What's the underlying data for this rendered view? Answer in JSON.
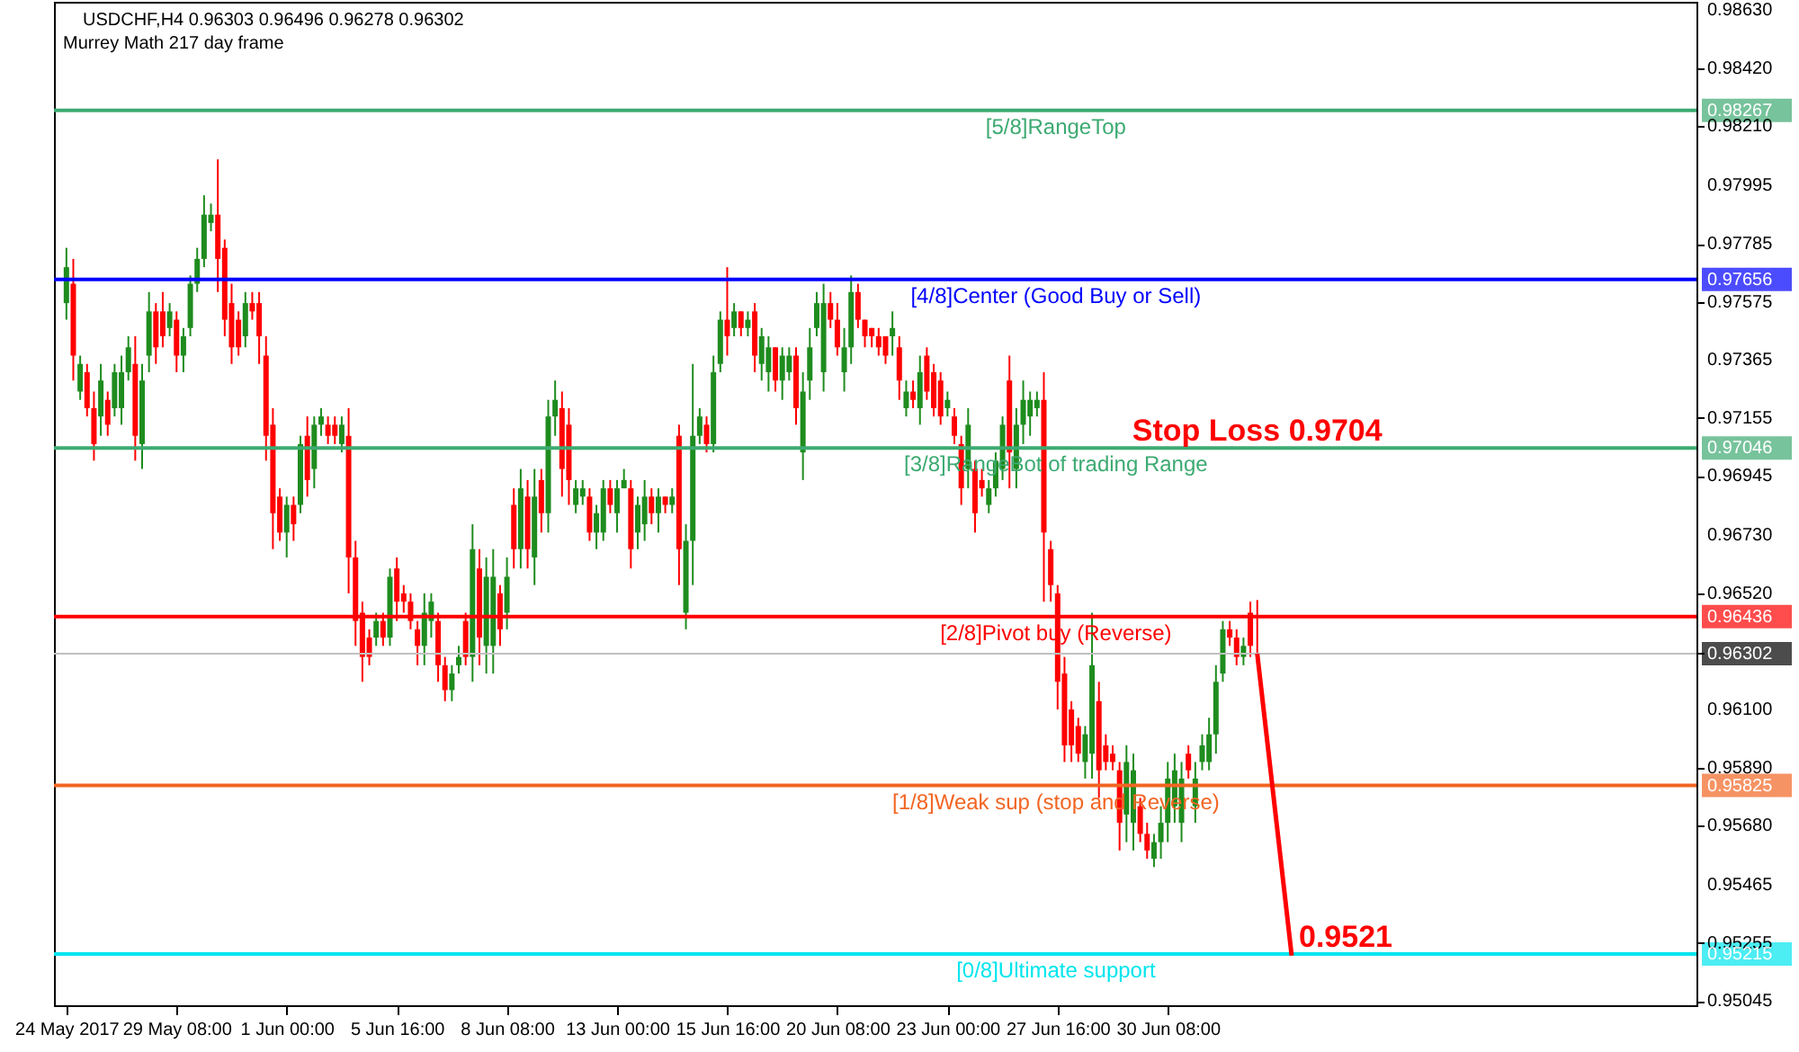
{
  "chart_data": {
    "type": "candlestick",
    "title": "USDCHF,H4  0.96303 0.96496 0.96278 0.96302",
    "subtitle": "Murrey Math 217 day frame",
    "colors": [
      "#1e8c1e",
      "#ff0000",
      "#1e8c1e",
      "#ff0000",
      "#ff0000",
      "#1e8c1e",
      "#ff0000",
      "#1e8c1e",
      "#1e8c1e",
      "#1e8c1e",
      "#ff0000",
      "#1e8c1e",
      "#1e8c1e",
      "#ff0000",
      "#ff0000",
      "#1e8c1e",
      "#ff0000",
      "#1e8c1e",
      "#1e8c1e",
      "#1e8c1e",
      "#1e8c1e",
      "#1e8c1e",
      "#ff0000",
      "#ff0000",
      "#ff0000",
      "#ff0000",
      "#1e8c1e",
      "#ff0000",
      "#ff0000",
      "#ff0000",
      "#ff0000",
      "#ff0000",
      "#1e8c1e",
      "#ff0000",
      "#1e8c1e",
      "#ff0000",
      "#1e8c1e",
      "#1e8c1e",
      "#ff0000",
      "#ff0000",
      "#1e8c1e",
      "#ff0000",
      "#ff0000",
      "#ff0000",
      "#ff0000",
      "#1e8c1e",
      "#ff0000",
      "#1e8c1e",
      "#ff0000",
      "#ff0000",
      "#ff0000",
      "#ff0000",
      "#1e8c1e",
      "#1e8c1e",
      "#ff0000",
      "#ff0000",
      "#1e8c1e",
      "#1e8c1e",
      "#ff0000",
      "#1e8c1e",
      "#ff0000",
      "#1e8c1e",
      "#1e8c1e",
      "#ff0000",
      "#1e8c1e",
      "#ff0000",
      "#1e8c1e",
      "#ff0000",
      "#1e8c1e",
      "#ff0000",
      "#1e8c1e",
      "#1e8c1e",
      "#ff0000",
      "#ff0000",
      "#1e8c1e",
      "#1e8c1e",
      "#ff0000",
      "#1e8c1e",
      "#1e8c1e",
      "#ff0000",
      "#1e8c1e",
      "#1e8c1e",
      "#ff0000",
      "#1e8c1e",
      "#1e8c1e",
      "#ff0000",
      "#1e8c1e",
      "#ff0000",
      "#1e8c1e",
      "#ff0000",
      "#1e8c1e",
      "#1e8c1e",
      "#1e8c1e",
      "#ff0000",
      "#1e8c1e",
      "#1e8c1e",
      "#ff0000",
      "#1e8c1e",
      "#ff0000",
      "#1e8c1e",
      "#ff0000",
      "#1e8c1e",
      "#1e8c1e",
      "#ff0000",
      "#1e8c1e",
      "#1e8c1e",
      "#ff0000",
      "#1e8c1e",
      "#1e8c1e",
      "#1e8c1e",
      "#1e8c1e",
      "#ff0000",
      "#ff0000",
      "#1e8c1e",
      "#1e8c1e",
      "#ff0000",
      "#ff0000",
      "#ff0000",
      "#ff0000",
      "#ff0000",
      "#1e8c1e",
      "#ff0000",
      "#1e8c1e",
      "#ff0000",
      "#1e8c1e",
      "#ff0000",
      "#ff0000",
      "#ff0000",
      "#1e8c1e",
      "#ff0000",
      "#ff0000",
      "#1e8c1e",
      "#ff0000",
      "#ff0000",
      "#1e8c1e",
      "#1e8c1e",
      "#1e8c1e",
      "#ff0000",
      "#1e8c1e",
      "#1e8c1e",
      "#1e8c1e",
      "#1e8c1e",
      "#ff0000",
      "#ff0000",
      "#ff0000",
      "#ff0000",
      "#ff0000",
      "#ff0000",
      "#1e8c1e",
      "#1e8c1e",
      "#ff0000",
      "#ff0000",
      "#ff0000",
      "#ff0000",
      "#1e8c1e",
      "#1e8c1e",
      "#ff0000",
      "#ff0000",
      "#1e8c1e",
      "#1e8c1e",
      "#1e8c1e",
      "#1e8c1e",
      "#1e8c1e",
      "#ff0000",
      "#1e8c1e",
      "#1e8c1e",
      "#1e8c1e",
      "#1e8c1e",
      "#1e8c1e",
      "#ff0000",
      "#ff0000",
      "#1e8c1e",
      "#ff0000",
      "#ff0000",
      null,
      null,
      null,
      null,
      null,
      null,
      null,
      null,
      null,
      null,
      null,
      null,
      null,
      null,
      null,
      null,
      null,
      null,
      null,
      null,
      null,
      null,
      null,
      null,
      null,
      null,
      null,
      null,
      null,
      null,
      null,
      null,
      null,
      null,
      null,
      null,
      null,
      null,
      null,
      null,
      null,
      null,
      null,
      null,
      null,
      null,
      null,
      null,
      null,
      null,
      null,
      null,
      null,
      null,
      null,
      null,
      null,
      null,
      null,
      null,
      null,
      null
    ],
    "categories": [
      "24 May 2017",
      null,
      null,
      null,
      null,
      null,
      null,
      null,
      null,
      null,
      null,
      null,
      null,
      null,
      null,
      null,
      "29 May 08:00",
      null,
      null,
      null,
      null,
      null,
      null,
      null,
      null,
      null,
      null,
      null,
      null,
      null,
      null,
      null,
      "1 Jun 00:00",
      null,
      null,
      null,
      null,
      null,
      null,
      null,
      null,
      null,
      null,
      null,
      null,
      null,
      null,
      null,
      "5 Jun 16:00",
      null,
      null,
      null,
      null,
      null,
      null,
      null,
      null,
      null,
      null,
      null,
      null,
      null,
      null,
      null,
      "8 Jun 08:00",
      null,
      null,
      null,
      null,
      null,
      null,
      null,
      null,
      null,
      null,
      null,
      null,
      null,
      null,
      null,
      "13 Jun 00:00",
      null,
      null,
      null,
      null,
      null,
      null,
      null,
      null,
      null,
      null,
      null,
      null,
      null,
      null,
      null,
      "15 Jun 16:00",
      null,
      null,
      null,
      null,
      null,
      null,
      null,
      null,
      null,
      null,
      null,
      null,
      null,
      null,
      null,
      "20 Jun 08:00",
      null,
      null,
      null,
      null,
      null,
      null,
      null,
      null,
      null,
      null,
      null,
      null,
      null,
      null,
      null,
      "23 Jun 00:00",
      null,
      null,
      null,
      null,
      null,
      null,
      null,
      null,
      null,
      null,
      null,
      null,
      null,
      null,
      null,
      "27 Jun 16:00",
      null,
      null,
      null,
      null,
      null,
      null,
      null,
      null,
      null,
      null,
      null,
      null,
      null,
      null,
      null,
      "30 Jun 08:00",
      null,
      null,
      null,
      null,
      null,
      null,
      null,
      null,
      null,
      null,
      null,
      null,
      null,
      null,
      null,
      null,
      null,
      null,
      null,
      null,
      null,
      null,
      null,
      null,
      null,
      null,
      null,
      null,
      null,
      null,
      null,
      null,
      null,
      null,
      null,
      null,
      null,
      null,
      null,
      null,
      null,
      null,
      null,
      null,
      null,
      null,
      null,
      null,
      null,
      null,
      null,
      null,
      null,
      null,
      null,
      null,
      null,
      null,
      null,
      null,
      null,
      null,
      null,
      null,
      null,
      null,
      null,
      null,
      null,
      null,
      null,
      null,
      null,
      null,
      null
    ],
    "ohlc": [
      [
        0.9757,
        0.9777,
        0.9751,
        0.977
      ],
      [
        0.9764,
        0.9773,
        0.9729,
        0.9738
      ],
      [
        0.9725,
        0.9738,
        0.9722,
        0.9735
      ],
      [
        0.9732,
        0.9735,
        0.9716,
        0.9719
      ],
      [
        0.9719,
        0.9725,
        0.97,
        0.9706
      ],
      [
        0.9716,
        0.9735,
        0.9709,
        0.9729
      ],
      [
        0.9722,
        0.9725,
        0.9709,
        0.9713
      ],
      [
        0.9719,
        0.9735,
        0.9716,
        0.9732
      ],
      [
        0.9719,
        0.9738,
        0.9713,
        0.9732
      ],
      [
        0.9732,
        0.9745,
        0.9729,
        0.9741
      ],
      [
        0.9735,
        0.9745,
        0.97,
        0.9709
      ],
      [
        0.9706,
        0.9735,
        0.9697,
        0.9729
      ],
      [
        0.9738,
        0.9761,
        0.9732,
        0.9754
      ],
      [
        0.9754,
        0.9757,
        0.9735,
        0.9741
      ],
      [
        0.9754,
        0.9761,
        0.9741,
        0.9745
      ],
      [
        0.9748,
        0.9757,
        0.9745,
        0.9754
      ],
      [
        0.9751,
        0.9754,
        0.9732,
        0.9738
      ],
      [
        0.9738,
        0.9748,
        0.9732,
        0.9745
      ],
      [
        0.9748,
        0.9767,
        0.9745,
        0.9764
      ],
      [
        0.9764,
        0.9777,
        0.9761,
        0.9773
      ],
      [
        0.9773,
        0.9796,
        0.977,
        0.9789
      ],
      [
        0.9786,
        0.9793,
        0.9783,
        0.9789
      ],
      [
        0.9789,
        0.9809,
        0.9761,
        0.9773
      ],
      [
        0.9777,
        0.978,
        0.9745,
        0.9751
      ],
      [
        0.9757,
        0.9764,
        0.9735,
        0.9741
      ],
      [
        0.9751,
        0.9754,
        0.9738,
        0.9741
      ],
      [
        0.9745,
        0.9761,
        0.9741,
        0.9757
      ],
      [
        0.9757,
        0.9761,
        0.9751,
        0.9754
      ],
      [
        0.9757,
        0.9761,
        0.9735,
        0.9745
      ],
      [
        0.9738,
        0.9745,
        0.97,
        0.9709
      ],
      [
        0.9713,
        0.9719,
        0.9668,
        0.9681
      ],
      [
        0.9687,
        0.969,
        0.9671,
        0.9674
      ],
      [
        0.9674,
        0.9687,
        0.9665,
        0.9684
      ],
      [
        0.9684,
        0.9687,
        0.9671,
        0.9677
      ],
      [
        0.9684,
        0.9709,
        0.9681,
        0.9706
      ],
      [
        0.9709,
        0.9716,
        0.9687,
        0.9693
      ],
      [
        0.9697,
        0.9716,
        0.969,
        0.9713
      ],
      [
        0.9713,
        0.9719,
        0.9709,
        0.9716
      ],
      [
        0.9713,
        0.9716,
        0.9706,
        0.9709
      ],
      [
        0.9713,
        0.9716,
        0.9706,
        0.9709
      ],
      [
        0.9706,
        0.9716,
        0.9703,
        0.9713
      ],
      [
        0.9709,
        0.9719,
        0.9652,
        0.9665
      ],
      [
        0.9665,
        0.9671,
        0.9633,
        0.9642
      ],
      [
        0.9645,
        0.9649,
        0.962,
        0.9629
      ],
      [
        0.9636,
        0.9639,
        0.9626,
        0.9629
      ],
      [
        0.9636,
        0.9645,
        0.9633,
        0.9642
      ],
      [
        0.9642,
        0.9645,
        0.9633,
        0.9636
      ],
      [
        0.9636,
        0.9661,
        0.9633,
        0.9658
      ],
      [
        0.9661,
        0.9665,
        0.9642,
        0.9649
      ],
      [
        0.9652,
        0.9655,
        0.9645,
        0.9649
      ],
      [
        0.9649,
        0.9652,
        0.9639,
        0.9642
      ],
      [
        0.9639,
        0.9642,
        0.9626,
        0.9633
      ],
      [
        0.9633,
        0.9652,
        0.9626,
        0.9645
      ],
      [
        0.9642,
        0.9652,
        0.9636,
        0.9649
      ],
      [
        0.9642,
        0.9645,
        0.962,
        0.9626
      ],
      [
        0.9626,
        0.9629,
        0.9613,
        0.9617
      ],
      [
        0.9617,
        0.9626,
        0.9613,
        0.9623
      ],
      [
        0.9626,
        0.9633,
        0.9623,
        0.9629
      ],
      [
        0.9642,
        0.9645,
        0.9626,
        0.9629
      ],
      [
        0.9629,
        0.9677,
        0.962,
        0.9668
      ],
      [
        0.9661,
        0.9668,
        0.9626,
        0.9636
      ],
      [
        0.9633,
        0.9665,
        0.9623,
        0.9658
      ],
      [
        0.9633,
        0.9668,
        0.9623,
        0.9658
      ],
      [
        0.9652,
        0.9655,
        0.9633,
        0.9639
      ],
      [
        0.9645,
        0.9665,
        0.9639,
        0.9658
      ],
      [
        0.9684,
        0.969,
        0.9661,
        0.9668
      ],
      [
        0.9668,
        0.9697,
        0.9661,
        0.969
      ],
      [
        0.9687,
        0.9693,
        0.9661,
        0.9668
      ],
      [
        0.9665,
        0.9697,
        0.9655,
        0.9687
      ],
      [
        0.9693,
        0.9697,
        0.9674,
        0.9681
      ],
      [
        0.9681,
        0.9722,
        0.9674,
        0.9716
      ],
      [
        0.9716,
        0.9729,
        0.9709,
        0.9722
      ],
      [
        0.9719,
        0.9725,
        0.9687,
        0.9697
      ],
      [
        0.9713,
        0.9719,
        0.9684,
        0.9693
      ],
      [
        0.9684,
        0.9693,
        0.9681,
        0.969
      ],
      [
        0.9687,
        0.9693,
        0.9684,
        0.969
      ],
      [
        0.9687,
        0.969,
        0.9671,
        0.9674
      ],
      [
        0.9674,
        0.9684,
        0.9668,
        0.9681
      ],
      [
        0.9674,
        0.9693,
        0.9671,
        0.969
      ],
      [
        0.969,
        0.9693,
        0.9681,
        0.9684
      ],
      [
        0.9681,
        0.9693,
        0.9674,
        0.969
      ],
      [
        0.969,
        0.9697,
        0.969,
        0.9693
      ],
      [
        0.969,
        0.9693,
        0.9661,
        0.9668
      ],
      [
        0.9674,
        0.9687,
        0.9668,
        0.9684
      ],
      [
        0.9677,
        0.9693,
        0.9671,
        0.9687
      ],
      [
        0.9687,
        0.969,
        0.9677,
        0.9681
      ],
      [
        0.9681,
        0.969,
        0.9674,
        0.9687
      ],
      [
        0.9687,
        0.9687,
        0.9681,
        0.9684
      ],
      [
        0.9684,
        0.969,
        0.9681,
        0.9687
      ],
      [
        0.9709,
        0.9713,
        0.9655,
        0.9668
      ],
      [
        0.9645,
        0.9677,
        0.9639,
        0.9671
      ],
      [
        0.9671,
        0.9735,
        0.9655,
        0.9709
      ],
      [
        0.9709,
        0.9719,
        0.9706,
        0.9716
      ],
      [
        0.9713,
        0.9716,
        0.9703,
        0.9706
      ],
      [
        0.9706,
        0.9738,
        0.9703,
        0.9732
      ],
      [
        0.9735,
        0.9754,
        0.9732,
        0.9751
      ],
      [
        0.9751,
        0.977,
        0.9738,
        0.9745
      ],
      [
        0.9748,
        0.9757,
        0.9745,
        0.9754
      ],
      [
        0.9754,
        0.9754,
        0.9745,
        0.9748
      ],
      [
        0.9748,
        0.9754,
        0.9745,
        0.9751
      ],
      [
        0.9754,
        0.9757,
        0.9732,
        0.9738
      ],
      [
        0.9735,
        0.9748,
        0.9729,
        0.9745
      ],
      [
        0.9732,
        0.9745,
        0.9725,
        0.9741
      ],
      [
        0.9741,
        0.9741,
        0.9725,
        0.9729
      ],
      [
        0.9729,
        0.9741,
        0.9722,
        0.9738
      ],
      [
        0.9732,
        0.9741,
        0.9729,
        0.9738
      ],
      [
        0.9738,
        0.9741,
        0.9713,
        0.9719
      ],
      [
        0.9703,
        0.9732,
        0.9693,
        0.9725
      ],
      [
        0.9729,
        0.9748,
        0.9722,
        0.9741
      ],
      [
        0.9748,
        0.9761,
        0.9745,
        0.9757
      ],
      [
        0.9732,
        0.9764,
        0.9725,
        0.9757
      ],
      [
        0.9757,
        0.9761,
        0.9748,
        0.9751
      ],
      [
        0.9751,
        0.9757,
        0.9738,
        0.9741
      ],
      [
        0.9732,
        0.9748,
        0.9725,
        0.9741
      ],
      [
        0.9741,
        0.9767,
        0.9735,
        0.9761
      ],
      [
        0.9761,
        0.9764,
        0.9748,
        0.9751
      ],
      [
        0.9751,
        0.9751,
        0.9741,
        0.9745
      ],
      [
        0.9748,
        0.9748,
        0.9741,
        0.9745
      ],
      [
        0.9745,
        0.9748,
        0.9738,
        0.9741
      ],
      [
        0.9745,
        0.9745,
        0.9735,
        0.9738
      ],
      [
        0.9745,
        0.9754,
        0.9738,
        0.9748
      ],
      [
        0.9741,
        0.9745,
        0.9722,
        0.9729
      ],
      [
        0.9719,
        0.9729,
        0.9716,
        0.9725
      ],
      [
        0.9725,
        0.9729,
        0.9719,
        0.9722
      ],
      [
        0.9719,
        0.9738,
        0.9713,
        0.9732
      ],
      [
        0.9738,
        0.9741,
        0.9722,
        0.9725
      ],
      [
        0.9732,
        0.9735,
        0.9716,
        0.9719
      ],
      [
        0.9729,
        0.9732,
        0.9713,
        0.9716
      ],
      [
        0.9719,
        0.9725,
        0.9716,
        0.9722
      ],
      [
        0.9716,
        0.9719,
        0.9706,
        0.9709
      ],
      [
        0.9706,
        0.9709,
        0.9684,
        0.969
      ],
      [
        0.9697,
        0.9719,
        0.969,
        0.9713
      ],
      [
        0.9697,
        0.97,
        0.9674,
        0.9681
      ],
      [
        0.9693,
        0.9697,
        0.9687,
        0.969
      ],
      [
        0.9684,
        0.9693,
        0.9681,
        0.969
      ],
      [
        0.969,
        0.9703,
        0.9687,
        0.97
      ],
      [
        0.9697,
        0.9716,
        0.9693,
        0.9713
      ],
      [
        0.9729,
        0.9738,
        0.969,
        0.9703
      ],
      [
        0.9697,
        0.9719,
        0.969,
        0.9713
      ],
      [
        0.9713,
        0.9729,
        0.9706,
        0.9722
      ],
      [
        0.9716,
        0.9725,
        0.9709,
        0.9722
      ],
      [
        0.9719,
        0.9725,
        0.9716,
        0.9722
      ],
      [
        0.9722,
        0.9732,
        0.9649,
        0.9674
      ],
      [
        0.9668,
        0.9671,
        0.9649,
        0.9655
      ],
      [
        0.9652,
        0.9655,
        0.961,
        0.962
      ],
      [
        0.9623,
        0.9629,
        0.9591,
        0.9597
      ],
      [
        0.961,
        0.9613,
        0.9591,
        0.9597
      ],
      [
        0.9604,
        0.9607,
        0.9591,
        0.9594
      ],
      [
        0.9591,
        0.9604,
        0.9585,
        0.9601
      ],
      [
        0.9594,
        0.9645,
        0.9585,
        0.9626
      ],
      [
        0.9613,
        0.962,
        0.9578,
        0.9588
      ],
      [
        0.9597,
        0.9601,
        0.9588,
        0.9591
      ],
      [
        0.9594,
        0.9597,
        0.9588,
        0.9591
      ],
      [
        0.9588,
        0.9591,
        0.9559,
        0.9569
      ],
      [
        0.9572,
        0.9597,
        0.9562,
        0.9591
      ],
      [
        0.9569,
        0.9594,
        0.9559,
        0.9588
      ],
      [
        0.9575,
        0.9578,
        0.9562,
        0.9565
      ],
      [
        0.9565,
        0.9569,
        0.9556,
        0.9559
      ],
      [
        0.9556,
        0.9565,
        0.9553,
        0.9562
      ],
      [
        0.9562,
        0.9575,
        0.9556,
        0.9569
      ],
      [
        0.9569,
        0.9591,
        0.9562,
        0.9585
      ],
      [
        0.9575,
        0.9594,
        0.9569,
        0.9588
      ],
      [
        0.9569,
        0.9591,
        0.9562,
        0.9585
      ],
      [
        0.9594,
        0.9597,
        0.9585,
        0.9588
      ],
      [
        0.9575,
        0.9591,
        0.9569,
        0.9585
      ],
      [
        0.9591,
        0.9601,
        0.9588,
        0.9597
      ],
      [
        0.9591,
        0.9607,
        0.9588,
        0.9601
      ],
      [
        0.9601,
        0.9626,
        0.9594,
        0.962
      ],
      [
        0.9623,
        0.9642,
        0.962,
        0.9639
      ],
      [
        0.9639,
        0.9642,
        0.9633,
        0.9636
      ],
      [
        0.9636,
        0.9639,
        0.9626,
        0.9629
      ],
      [
        0.9629,
        0.9636,
        0.9626,
        0.9633
      ],
      [
        0.9645,
        0.9649,
        0.9629,
        0.9633
      ],
      [
        0.96303,
        0.96496,
        0.96278,
        0.96302
      ],
      null,
      null,
      null,
      null,
      null,
      null,
      null,
      null,
      null,
      null,
      null,
      null,
      null,
      null,
      null,
      null,
      null,
      null,
      null,
      null,
      null,
      null,
      null,
      null,
      null,
      null,
      null,
      null,
      null,
      null,
      null,
      null,
      null,
      null,
      null,
      null,
      null,
      null,
      null,
      null,
      null,
      null,
      null,
      null,
      null,
      null,
      null,
      null,
      null,
      null,
      null,
      null,
      null,
      null,
      null,
      null,
      null,
      null,
      null,
      null,
      null,
      null
    ],
    "series": [
      {
        "type": "line",
        "color": "#ff0000",
        "values": [
          null,
          null,
          null,
          null,
          null,
          null,
          null,
          null,
          null,
          null,
          null,
          null,
          null,
          null,
          null,
          null,
          null,
          null,
          null,
          null,
          null,
          null,
          null,
          null,
          null,
          null,
          null,
          null,
          null,
          null,
          null,
          null,
          null,
          null,
          null,
          null,
          null,
          null,
          null,
          null,
          null,
          null,
          null,
          null,
          null,
          null,
          null,
          null,
          null,
          null,
          null,
          null,
          null,
          null,
          null,
          null,
          null,
          null,
          null,
          null,
          null,
          null,
          null,
          null,
          null,
          null,
          null,
          null,
          null,
          null,
          null,
          null,
          null,
          null,
          null,
          null,
          null,
          null,
          null,
          null,
          null,
          null,
          null,
          null,
          null,
          null,
          null,
          null,
          null,
          null,
          null,
          null,
          null,
          null,
          null,
          null,
          null,
          null,
          null,
          null,
          null,
          null,
          null,
          null,
          null,
          null,
          null,
          null,
          null,
          null,
          null,
          null,
          null,
          null,
          null,
          null,
          null,
          null,
          null,
          null,
          null,
          null,
          null,
          null,
          null,
          null,
          null,
          null,
          null,
          null,
          null,
          null,
          null,
          null,
          null,
          null,
          null,
          null,
          null,
          null,
          null,
          null,
          null,
          null,
          null,
          null,
          null,
          null,
          null,
          null,
          null,
          null,
          null,
          null,
          null,
          null,
          null,
          null,
          null,
          null,
          null,
          null,
          null,
          null,
          null,
          null,
          null,
          null,
          null,
          null,
          null,
          null,
          null,
          0.96302,
          null,
          null,
          null,
          null,
          0.9521,
          null,
          null,
          null,
          null,
          null,
          null,
          null,
          null,
          null,
          null,
          null,
          null,
          null,
          null,
          null,
          null,
          null,
          null,
          null,
          null,
          null,
          null,
          null,
          null,
          null,
          null,
          null,
          null,
          null,
          null,
          null,
          null,
          null,
          null,
          null,
          null,
          null,
          null,
          null,
          null,
          null,
          null,
          null,
          null,
          null,
          null,
          null,
          null,
          null,
          null,
          null,
          null,
          null,
          null,
          null,
          null,
          null
        ]
      }
    ],
    "annotations": [
      {
        "text": "Stop Loss 0.9704",
        "y": 0.9704
      },
      {
        "text": "0.9521",
        "y": 0.9521
      }
    ],
    "ref_lines": [
      {
        "axis": "y",
        "value": 0.98267,
        "label": "[5/8]RangeTop",
        "color": "#3daa72"
      },
      {
        "axis": "y",
        "value": 0.97656,
        "label": "[4/8]Center (Good Buy or Sell)",
        "color": "#0000ff"
      },
      {
        "axis": "y",
        "value": 0.97046,
        "label": "[3/8]RangeBot of trading Range",
        "color": "#3daa72"
      },
      {
        "axis": "y",
        "value": 0.96436,
        "label": "[2/8]Pivot buy (Reverse)",
        "color": "#ff0000"
      },
      {
        "axis": "y",
        "value": 0.96302,
        "label": null,
        "color": "#c0c0c0"
      },
      {
        "axis": "y",
        "value": 0.95825,
        "label": "[1/8]Weak sup (stop and Reverse)",
        "color": "#f26522"
      },
      {
        "axis": "y",
        "value": 0.95215,
        "label": "[0/8]Ultimate support",
        "color": "#00e5ee"
      }
    ],
    "ylim": [
      0.9503,
      0.9866
    ],
    "yticks": [
      {
        "value": 0.9863,
        "label": "0.98630"
      },
      {
        "value": 0.9842,
        "label": "0.98420"
      },
      {
        "value": 0.9821,
        "label": "0.98210"
      },
      0.97995,
      0.97785,
      0.97575,
      0.97365,
      0.97155,
      0.96945,
      {
        "value": 0.9673,
        "label": "0.96730"
      },
      {
        "value": 0.9652,
        "label": "0.96520"
      },
      {
        "value": 0.961,
        "label": "0.96100"
      },
      {
        "value": 0.9589,
        "label": "0.95890"
      },
      {
        "value": 0.9568,
        "label": "0.95680"
      },
      0.95465,
      0.95255,
      0.95045,
      0.98267,
      0.97656,
      0.97046,
      0.96436,
      0.96302,
      0.95825,
      0.95215
    ]
  }
}
